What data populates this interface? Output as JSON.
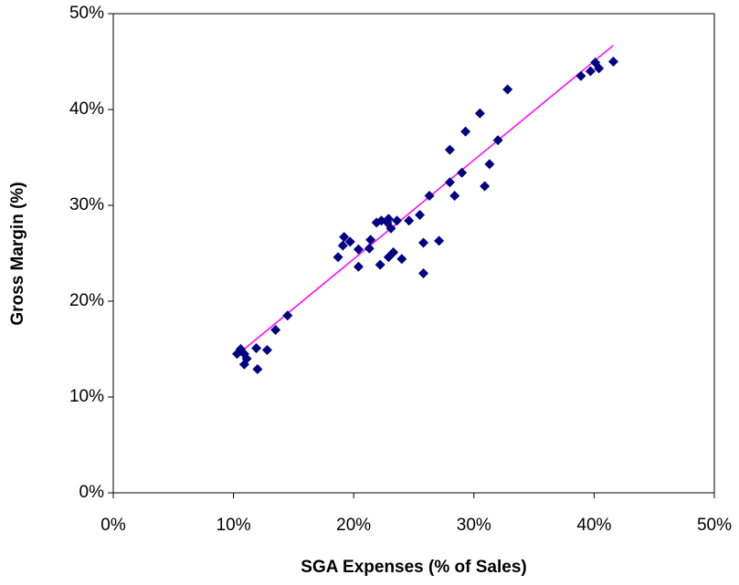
{
  "chart_data": {
    "type": "scatter",
    "x_label": "SGA Expenses (% of Sales)",
    "y_label": "Gross Margin (%)",
    "x": [
      10.6,
      10.3,
      10.9,
      11.1,
      10.9,
      11.9,
      12.0,
      12.8,
      13.5,
      14.5,
      18.7,
      19.2,
      19.1,
      19.7,
      20.4,
      20.4,
      21.3,
      21.4,
      21.9,
      22.3,
      22.2,
      22.8,
      22.9,
      22.9,
      23.1,
      23.3,
      23.6,
      24.0,
      24.6,
      25.5,
      25.8,
      25.8,
      26.3,
      27.1,
      28.0,
      28.0,
      28.4,
      29.0,
      29.3,
      30.5,
      30.9,
      31.3,
      32.0,
      32.8,
      38.9,
      39.7,
      40.1,
      40.4,
      41.6
    ],
    "values": [
      15.0,
      14.5,
      14.5,
      14.0,
      13.4,
      15.1,
      12.9,
      14.9,
      17.0,
      18.5,
      24.6,
      26.7,
      25.8,
      26.2,
      25.4,
      23.6,
      25.5,
      26.4,
      28.2,
      28.4,
      23.8,
      28.2,
      24.6,
      28.6,
      27.6,
      25.1,
      28.4,
      24.4,
      28.4,
      29.0,
      26.1,
      22.9,
      31.0,
      26.3,
      35.8,
      32.4,
      31.0,
      33.4,
      37.7,
      39.6,
      32.0,
      34.3,
      36.8,
      42.1,
      43.5,
      44.0,
      44.9,
      44.3,
      45.0
    ],
    "color": "#000080",
    "trendline": {
      "x": [
        10.9,
        41.6
      ],
      "values": [
        15.0,
        46.7
      ],
      "color": "#ff00ff"
    },
    "xlim": [
      0,
      50
    ],
    "xticks": [
      {
        "value": 0,
        "label": "0%"
      },
      {
        "value": 10,
        "label": "10%"
      },
      {
        "value": 20,
        "label": "20%"
      },
      {
        "value": 30,
        "label": "30%"
      },
      {
        "value": 40,
        "label": "40%"
      },
      {
        "value": 50,
        "label": "50%"
      }
    ],
    "ylim": [
      0,
      50
    ],
    "yticks": [
      {
        "value": 0,
        "label": "0%"
      },
      {
        "value": 10,
        "label": "10%"
      },
      {
        "value": 20,
        "label": "20%"
      },
      {
        "value": 30,
        "label": "30%"
      },
      {
        "value": 40,
        "label": "40%"
      },
      {
        "value": 50,
        "label": "50%"
      }
    ],
    "grid": false
  }
}
